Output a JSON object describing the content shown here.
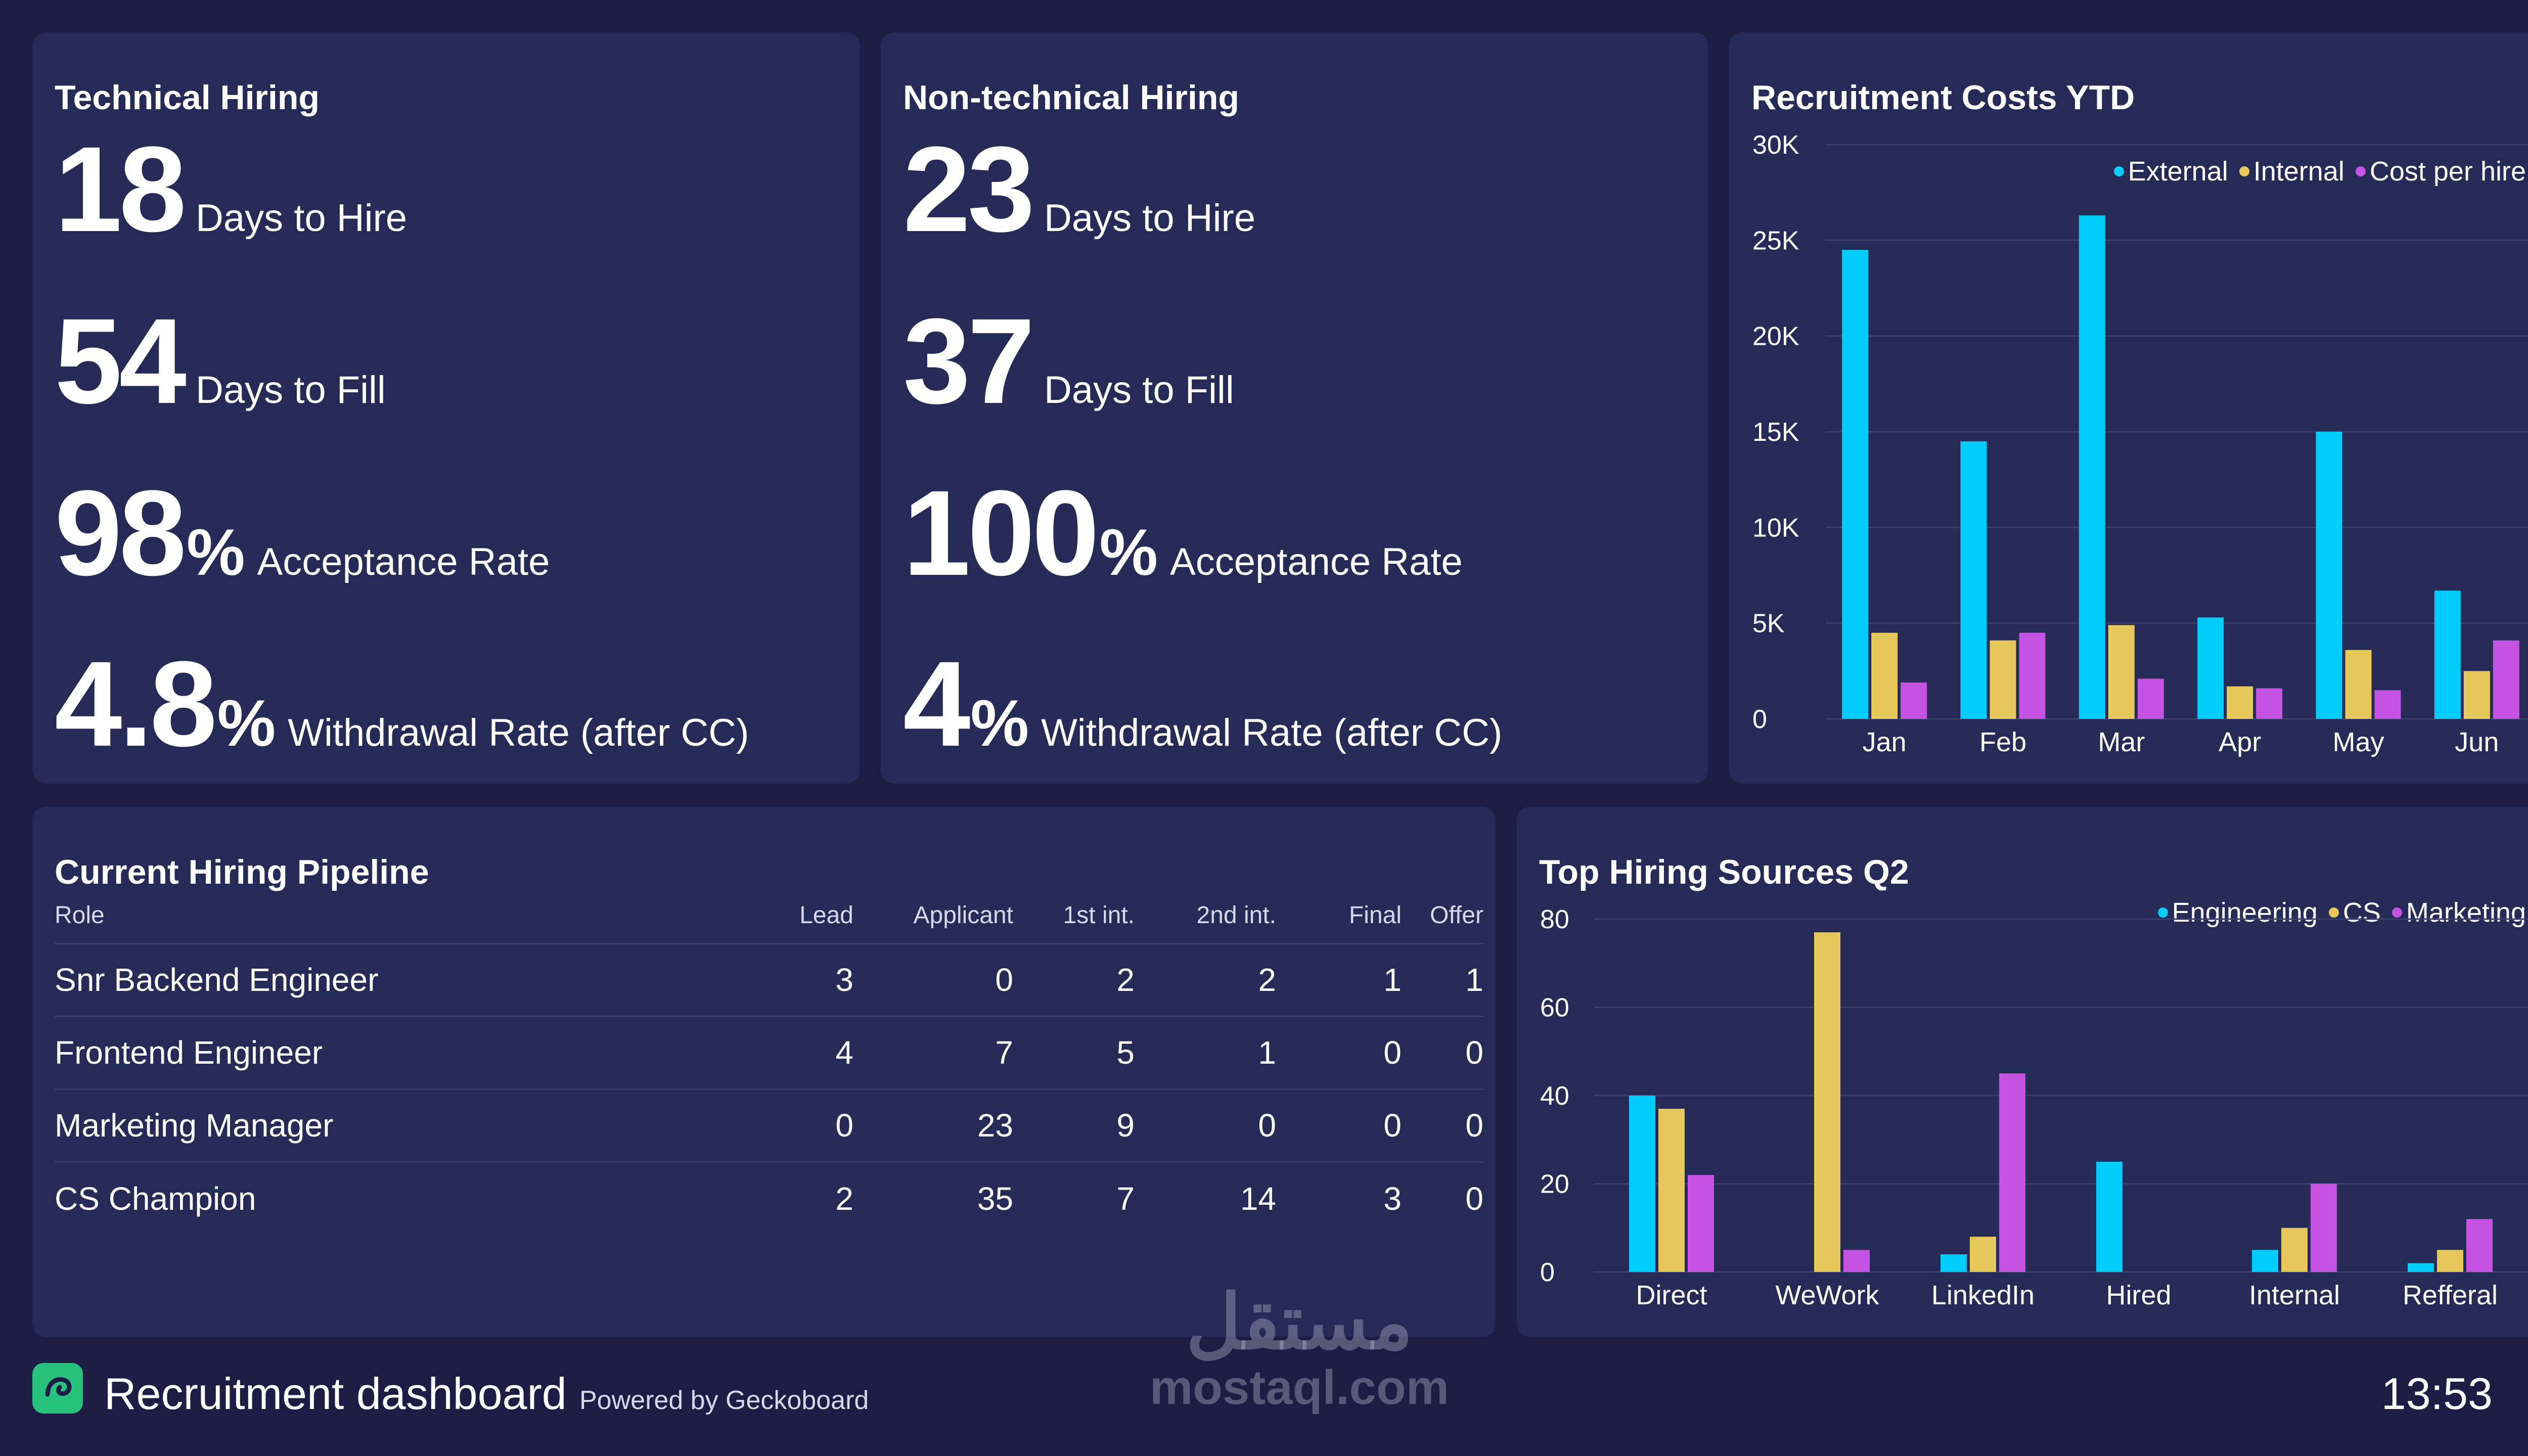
{
  "technical": {
    "title": "Technical Hiring",
    "days_to_hire": {
      "value": "18",
      "label": "Days to Hire"
    },
    "days_to_fill": {
      "value": "54",
      "label": "Days to Fill"
    },
    "acceptance": {
      "value": "98",
      "unit": "%",
      "label": "Acceptance Rate"
    },
    "withdrawal": {
      "value": "4.8",
      "unit": "%",
      "label": "Withdrawal Rate (after CC)"
    }
  },
  "nontechnical": {
    "title": "Non-technical Hiring",
    "days_to_hire": {
      "value": "23",
      "label": "Days to Hire"
    },
    "days_to_fill": {
      "value": "37",
      "label": "Days to Fill"
    },
    "acceptance": {
      "value": "100",
      "unit": "%",
      "label": "Acceptance Rate"
    },
    "withdrawal": {
      "value": "4",
      "unit": "%",
      "label": "Withdrawal Rate (after CC)"
    }
  },
  "pipeline": {
    "title": "Current Hiring Pipeline",
    "columns": [
      "Role",
      "Lead",
      "Applicant",
      "1st int.",
      "2nd int.",
      "Final",
      "Offer"
    ],
    "rows": [
      [
        "Snr Backend Engineer",
        "3",
        "0",
        "2",
        "2",
        "1",
        "1"
      ],
      [
        "Frontend Engineer",
        "4",
        "7",
        "5",
        "1",
        "0",
        "0"
      ],
      [
        "Marketing Manager",
        "0",
        "23",
        "9",
        "0",
        "0",
        "0"
      ],
      [
        "CS Champion",
        "2",
        "35",
        "7",
        "14",
        "3",
        "0"
      ]
    ]
  },
  "colors": {
    "cyan": "#00cdfb",
    "yellow": "#e7c95b",
    "purple": "#c353e0"
  },
  "chart_data": [
    {
      "type": "bar",
      "title": "Recruitment Costs YTD",
      "categories": [
        "Jan",
        "Feb",
        "Mar",
        "Apr",
        "May",
        "Jun"
      ],
      "series": [
        {
          "name": "External",
          "color": "#00cdfb",
          "values": [
            24500,
            14500,
            26300,
            5300,
            15000,
            6700
          ]
        },
        {
          "name": "Internal",
          "color": "#e7c95b",
          "values": [
            4500,
            4100,
            4900,
            1700,
            3600,
            2500
          ]
        },
        {
          "name": "Cost per hire",
          "color": "#c353e0",
          "values": [
            1900,
            4500,
            2100,
            1600,
            1500,
            4100
          ]
        }
      ],
      "ylim": [
        0,
        30000
      ],
      "yticks": [
        0,
        5000,
        10000,
        15000,
        20000,
        25000,
        30000
      ],
      "ytick_labels": [
        "0",
        "5K",
        "10K",
        "15K",
        "20K",
        "25K",
        "30K"
      ],
      "xlabel": "",
      "ylabel": "",
      "grid": true,
      "legend": "top-right"
    },
    {
      "type": "bar",
      "title": "Top Hiring Sources Q2",
      "categories": [
        "Direct",
        "WeWork",
        "LinkedIn",
        "Hired",
        "Internal",
        "Refferal"
      ],
      "series": [
        {
          "name": "Engineering",
          "color": "#00cdfb",
          "values": [
            40,
            0,
            4,
            25,
            5,
            2
          ]
        },
        {
          "name": "CS",
          "color": "#e7c95b",
          "values": [
            37,
            77,
            8,
            0,
            10,
            5
          ]
        },
        {
          "name": "Marketing",
          "color": "#c353e0",
          "values": [
            22,
            5,
            45,
            0,
            20,
            12
          ]
        }
      ],
      "ylim": [
        0,
        80
      ],
      "yticks": [
        0,
        20,
        40,
        60,
        80
      ],
      "ytick_labels": [
        "0",
        "20",
        "40",
        "60",
        "80"
      ],
      "xlabel": "",
      "ylabel": "",
      "grid": true,
      "legend": "top-right"
    }
  ],
  "footer": {
    "title": "Recruitment dashboard",
    "powered_by": "Powered by Geckoboard",
    "time": "13:53",
    "logo_icon": "geckoboard-logo-icon"
  },
  "watermark": {
    "logo_text": "مستقل",
    "site": "mostaql.com"
  }
}
